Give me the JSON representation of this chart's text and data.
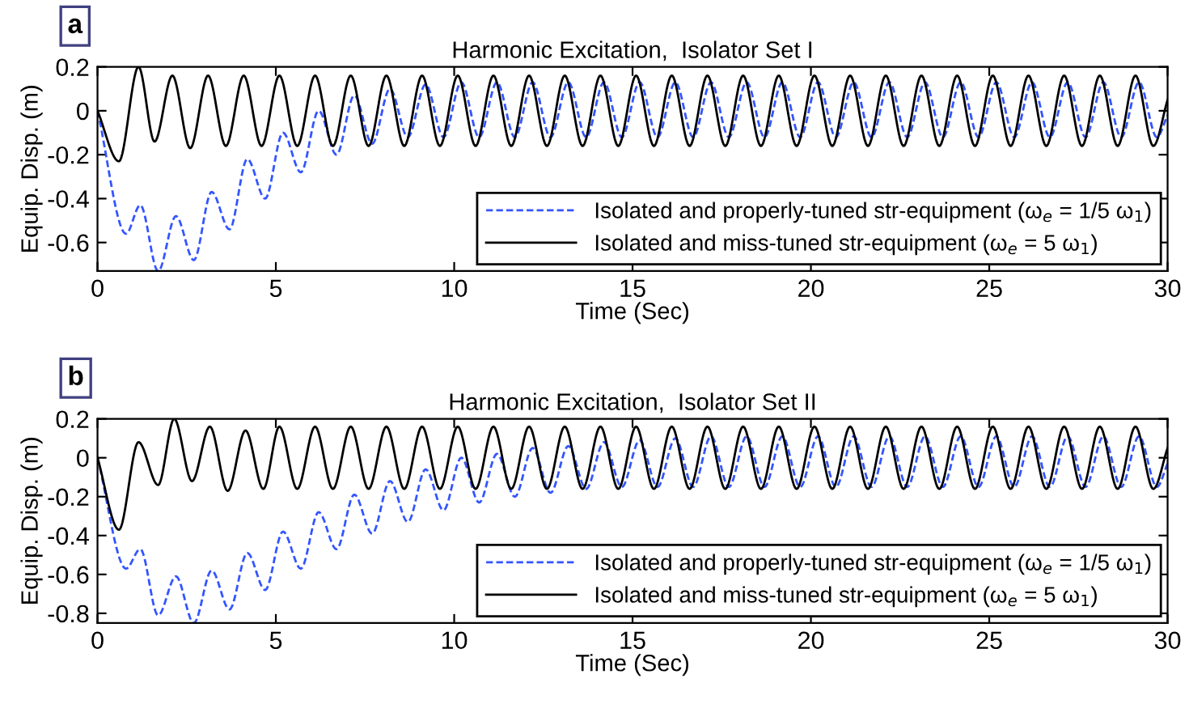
{
  "chart_data": [
    {
      "type": "line",
      "title": "Harmonic Excitation,  Isolator Set I",
      "xlabel": "Time (Sec)",
      "ylabel": "Equip. Disp. (m)",
      "annotations": [
        "a"
      ],
      "xlim": [
        0,
        30
      ],
      "xticks": [
        0,
        5,
        10,
        15,
        20,
        25,
        30
      ],
      "ylim": [
        -0.73,
        0.2
      ],
      "yticks": [
        -0.6,
        -0.4,
        -0.2,
        0,
        0.2
      ],
      "legend": "bottom right",
      "grid": false,
      "series": [
        {
          "name": "Isolated and properly-tuned str-equipment (ω$_{e}$ = 1/5 ω$_{1}$)",
          "color": "#3355ff",
          "line_style": "dashed",
          "x": [
            0,
            0.8,
            1.2,
            1.7,
            2.2,
            2.7,
            3.2,
            3.7,
            4.2,
            4.7,
            5.2,
            5.7,
            6.2,
            6.7,
            7.2,
            7.7,
            8.2,
            8.7,
            9.2,
            9.7,
            10.2,
            10.7,
            11.2,
            11.7,
            12.2,
            12.7,
            13.2,
            13.7,
            14.2,
            14.7,
            15.2,
            15.7,
            16.2,
            16.7,
            17.2,
            17.7,
            18.2,
            18.7,
            19.2,
            19.7,
            20.2,
            20.7,
            21.2,
            21.7,
            22.2,
            22.7,
            23.2,
            23.7,
            24.2,
            24.7,
            25.2,
            25.7,
            26.2,
            26.7,
            27.2,
            27.7,
            28.2,
            28.7,
            29.2,
            29.7,
            30
          ],
          "values": [
            0,
            -0.56,
            -0.43,
            -0.73,
            -0.48,
            -0.68,
            -0.37,
            -0.54,
            -0.22,
            -0.4,
            -0.1,
            -0.28,
            0.0,
            -0.2,
            0.07,
            -0.15,
            0.1,
            -0.12,
            0.12,
            -0.12,
            0.13,
            -0.12,
            0.13,
            -0.12,
            0.13,
            -0.12,
            0.13,
            -0.12,
            0.13,
            -0.12,
            0.13,
            -0.12,
            0.13,
            -0.12,
            0.13,
            -0.12,
            0.13,
            -0.12,
            0.13,
            -0.12,
            0.13,
            -0.12,
            0.13,
            -0.12,
            0.13,
            -0.12,
            0.13,
            -0.12,
            0.13,
            -0.12,
            0.13,
            -0.12,
            0.13,
            -0.12,
            0.13,
            -0.12,
            0.13,
            -0.12,
            0.13,
            -0.12,
            -0.02
          ]
        },
        {
          "name": "Isolated and miss-tuned str-equipment (ω$_{e}$ = 5 ω$_{1}$)",
          "color": "#000000",
          "line_style": "solid",
          "x": [
            0,
            0.6,
            1.15,
            1.6,
            2.1,
            2.6,
            3.1,
            3.6,
            4.1,
            4.6,
            5.1,
            5.6,
            6.1,
            6.6,
            7.1,
            7.6,
            8.1,
            8.6,
            9.1,
            9.6,
            10.1,
            10.6,
            11.1,
            11.6,
            12.1,
            12.6,
            13.1,
            13.6,
            14.1,
            14.6,
            15.1,
            15.6,
            16.1,
            16.6,
            17.1,
            17.6,
            18.1,
            18.6,
            19.1,
            19.6,
            20.1,
            20.6,
            21.1,
            21.6,
            22.1,
            22.6,
            23.1,
            23.6,
            24.1,
            24.6,
            25.1,
            25.6,
            26.1,
            26.6,
            27.1,
            27.6,
            28.1,
            28.6,
            29.1,
            29.6,
            30
          ],
          "values": [
            0,
            -0.23,
            0.2,
            -0.14,
            0.16,
            -0.17,
            0.16,
            -0.16,
            0.16,
            -0.16,
            0.16,
            -0.16,
            0.16,
            -0.16,
            0.16,
            -0.16,
            0.16,
            -0.16,
            0.16,
            -0.16,
            0.16,
            -0.16,
            0.16,
            -0.16,
            0.16,
            -0.16,
            0.16,
            -0.16,
            0.16,
            -0.16,
            0.16,
            -0.16,
            0.16,
            -0.16,
            0.16,
            -0.16,
            0.16,
            -0.16,
            0.16,
            -0.16,
            0.16,
            -0.16,
            0.16,
            -0.16,
            0.16,
            -0.16,
            0.16,
            -0.16,
            0.16,
            -0.16,
            0.16,
            -0.16,
            0.16,
            -0.16,
            0.16,
            -0.16,
            0.16,
            -0.16,
            0.16,
            -0.16,
            0.05
          ]
        }
      ]
    },
    {
      "type": "line",
      "title": "Harmonic Excitation,  Isolator Set II",
      "xlabel": "Time (Sec)",
      "ylabel": "Equip. Disp. (m)",
      "annotations": [
        "b"
      ],
      "xlim": [
        0,
        30
      ],
      "xticks": [
        0,
        5,
        10,
        15,
        20,
        25,
        30
      ],
      "ylim": [
        -0.85,
        0.2
      ],
      "yticks": [
        -0.8,
        -0.6,
        -0.4,
        -0.2,
        0,
        0.2
      ],
      "legend": "bottom right",
      "grid": false,
      "series": [
        {
          "name": "Isolated and properly-tuned str-equipment (ω$_{e}$ = 1/5 ω$_{1}$)",
          "color": "#3355ff",
          "line_style": "dashed",
          "x": [
            0,
            0.8,
            1.2,
            1.7,
            2.2,
            2.7,
            3.2,
            3.7,
            4.2,
            4.7,
            5.2,
            5.7,
            6.2,
            6.7,
            7.2,
            7.7,
            8.2,
            8.7,
            9.2,
            9.7,
            10.2,
            10.7,
            11.2,
            11.7,
            12.2,
            12.7,
            13.2,
            13.7,
            14.2,
            14.7,
            15.2,
            15.7,
            16.2,
            16.7,
            17.2,
            17.7,
            18.2,
            18.7,
            19.2,
            19.7,
            20.2,
            20.7,
            21.2,
            21.7,
            22.2,
            22.7,
            23.2,
            23.7,
            24.2,
            24.7,
            25.2,
            25.7,
            26.2,
            26.7,
            27.2,
            27.7,
            28.2,
            28.7,
            29.2,
            29.7,
            30
          ],
          "values": [
            0,
            -0.57,
            -0.47,
            -0.81,
            -0.61,
            -0.85,
            -0.58,
            -0.78,
            -0.49,
            -0.68,
            -0.38,
            -0.57,
            -0.28,
            -0.47,
            -0.19,
            -0.39,
            -0.12,
            -0.33,
            -0.06,
            -0.27,
            0.0,
            -0.23,
            0.02,
            -0.2,
            0.05,
            -0.18,
            0.06,
            -0.16,
            0.08,
            -0.15,
            0.09,
            -0.15,
            0.1,
            -0.15,
            0.11,
            -0.15,
            0.11,
            -0.15,
            0.11,
            -0.15,
            0.11,
            -0.15,
            0.11,
            -0.15,
            0.11,
            -0.15,
            0.11,
            -0.15,
            0.11,
            -0.15,
            0.11,
            -0.15,
            0.11,
            -0.15,
            0.11,
            -0.15,
            0.11,
            -0.15,
            0.11,
            -0.15,
            -0.03
          ]
        },
        {
          "name": "Isolated and miss-tuned str-equipment (ω$_{e}$ = 5 ω$_{1}$)",
          "color": "#000000",
          "line_style": "solid",
          "x": [
            0,
            0.6,
            1.15,
            1.7,
            2.15,
            2.65,
            3.15,
            3.65,
            4.15,
            4.65,
            5.1,
            5.6,
            6.1,
            6.6,
            7.1,
            7.6,
            8.1,
            8.6,
            9.1,
            9.6,
            10.1,
            10.6,
            11.1,
            11.6,
            12.1,
            12.6,
            13.1,
            13.6,
            14.1,
            14.6,
            15.1,
            15.6,
            16.1,
            16.6,
            17.1,
            17.6,
            18.1,
            18.6,
            19.1,
            19.6,
            20.1,
            20.6,
            21.1,
            21.6,
            22.1,
            22.6,
            23.1,
            23.6,
            24.1,
            24.6,
            25.1,
            25.6,
            26.1,
            26.6,
            27.1,
            27.6,
            28.1,
            28.6,
            29.1,
            29.6,
            30
          ],
          "values": [
            0,
            -0.37,
            0.08,
            -0.14,
            0.2,
            -0.12,
            0.16,
            -0.17,
            0.14,
            -0.16,
            0.16,
            -0.16,
            0.16,
            -0.16,
            0.16,
            -0.16,
            0.16,
            -0.16,
            0.16,
            -0.16,
            0.16,
            -0.16,
            0.16,
            -0.16,
            0.16,
            -0.16,
            0.16,
            -0.16,
            0.16,
            -0.16,
            0.16,
            -0.16,
            0.16,
            -0.16,
            0.16,
            -0.16,
            0.16,
            -0.16,
            0.16,
            -0.16,
            0.16,
            -0.16,
            0.16,
            -0.16,
            0.16,
            -0.16,
            0.16,
            -0.16,
            0.16,
            -0.16,
            0.16,
            -0.16,
            0.16,
            -0.16,
            0.16,
            -0.16,
            0.16,
            -0.16,
            0.16,
            -0.16,
            0.05
          ]
        }
      ]
    }
  ]
}
